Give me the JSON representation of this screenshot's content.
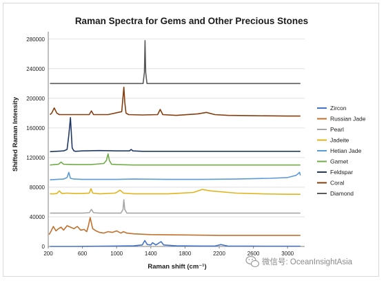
{
  "chart_data": {
    "type": "line",
    "title": "Raman Spectra for Gems and Other Precious Stones",
    "xlabel": "Raman shift (cm⁻¹)",
    "ylabel": "Shifted Raman Intensity",
    "xlim": [
      200,
      3200
    ],
    "ylim": [
      0,
      290000
    ],
    "xticks": [
      200,
      600,
      1000,
      1400,
      1800,
      2200,
      2600,
      3000
    ],
    "yticks": [
      0,
      40000,
      80000,
      120000,
      160000,
      200000,
      240000,
      280000
    ],
    "grid": "horizontal",
    "legend_position": "right",
    "series": [
      {
        "name": "Zircon",
        "color": "#4472c4",
        "x": [
          220,
          500,
          900,
          1200,
          1300,
          1330,
          1360,
          1400,
          1420,
          1460,
          1480,
          1520,
          1550,
          1700,
          2000,
          2150,
          2220,
          2300,
          2600,
          3000,
          3150
        ],
        "y": [
          0,
          0,
          400,
          800,
          2000,
          8000,
          2500,
          2000,
          5000,
          2000,
          3500,
          6500,
          2000,
          800,
          600,
          600,
          2500,
          600,
          400,
          300,
          300
        ]
      },
      {
        "name": "Russian Jade",
        "color": "#c0702c",
        "x": [
          210,
          230,
          260,
          290,
          320,
          350,
          380,
          420,
          460,
          500,
          540,
          580,
          620,
          650,
          670,
          690,
          720,
          760,
          800,
          850,
          900,
          950,
          1000,
          1050,
          1080,
          1120,
          1200,
          1400,
          1800,
          2200,
          2600,
          3000,
          3150
        ],
        "y": [
          16000,
          20000,
          27000,
          21000,
          24000,
          26000,
          22000,
          28000,
          26000,
          24000,
          27000,
          22000,
          23000,
          20000,
          28000,
          39000,
          24000,
          21000,
          19000,
          18000,
          20000,
          19000,
          21000,
          18000,
          20000,
          18000,
          17000,
          16000,
          15500,
          15000,
          15000,
          15000,
          15000
        ]
      },
      {
        "name": "Pearl",
        "color": "#a6a6a6",
        "x": [
          220,
          600,
          680,
          705,
          730,
          800,
          1050,
          1075,
          1085,
          1095,
          1120,
          1500,
          2000,
          2600,
          3150
        ],
        "y": [
          45000,
          45000,
          45500,
          50000,
          45500,
          45000,
          45000,
          50000,
          63000,
          50000,
          45000,
          45000,
          45000,
          45000,
          45000
        ]
      },
      {
        "name": "Jadeite",
        "color": "#e0b51c",
        "x": [
          220,
          270,
          300,
          330,
          360,
          420,
          500,
          600,
          680,
          700,
          720,
          800,
          980,
          1000,
          1040,
          1080,
          1200,
          1400,
          1600,
          1900,
          2000,
          2100,
          2400,
          2700,
          3000,
          3150
        ],
        "y": [
          71000,
          71000,
          71500,
          75000,
          71500,
          72000,
          71500,
          71500,
          72000,
          78000,
          72000,
          71000,
          72000,
          73000,
          76000,
          72000,
          71000,
          71000,
          71000,
          73000,
          77000,
          75000,
          72000,
          71000,
          70500,
          70500
        ]
      },
      {
        "name": "Hetian Jade",
        "color": "#5b9bd5",
        "x": [
          220,
          300,
          380,
          420,
          440,
          460,
          500,
          600,
          800,
          1000,
          1200,
          1600,
          2000,
          2400,
          2800,
          3000,
          3100,
          3140,
          3150
        ],
        "y": [
          90000,
          90500,
          91000,
          93000,
          100000,
          92000,
          91000,
          90500,
          90500,
          90500,
          91000,
          90500,
          90500,
          91000,
          92000,
          93000,
          96000,
          100000,
          96000
        ]
      },
      {
        "name": "Garnet",
        "color": "#70ad47",
        "x": [
          220,
          320,
          350,
          380,
          500,
          700,
          850,
          880,
          900,
          915,
          940,
          1000,
          1200,
          1600,
          2000,
          2400,
          2800,
          3150
        ],
        "y": [
          110000,
          111000,
          114000,
          111000,
          110500,
          110500,
          112000,
          116000,
          125000,
          116000,
          111000,
          110500,
          110000,
          110000,
          110000,
          110000,
          110000,
          110000
        ]
      },
      {
        "name": "Feldspar",
        "color": "#203864",
        "x": [
          220,
          380,
          420,
          440,
          460,
          480,
          500,
          520,
          600,
          800,
          1000,
          1150,
          1170,
          1190,
          1300,
          1600,
          2000,
          2400,
          2800,
          3150
        ],
        "y": [
          128000,
          129000,
          131000,
          150000,
          174000,
          133000,
          129000,
          128500,
          129000,
          129500,
          129000,
          129000,
          131000,
          129000,
          128500,
          128500,
          128500,
          128500,
          128500,
          128500
        ]
      },
      {
        "name": "Coral",
        "color": "#843c0c",
        "x": [
          220,
          240,
          270,
          300,
          330,
          500,
          680,
          705,
          730,
          900,
          1060,
          1085,
          1095,
          1110,
          1140,
          1300,
          1480,
          1510,
          1540,
          1700,
          1950,
          2050,
          2150,
          2300,
          2600,
          3000,
          3150
        ],
        "y": [
          178000,
          180000,
          187000,
          180000,
          178000,
          178000,
          178000,
          183000,
          178000,
          178000,
          182000,
          215000,
          195000,
          180000,
          178000,
          177500,
          178000,
          185000,
          178000,
          177000,
          179000,
          181000,
          178000,
          177000,
          176500,
          176000,
          176000
        ]
      },
      {
        "name": "Diamond",
        "color": "#595959",
        "x": [
          220,
          1000,
          1310,
          1325,
          1332,
          1340,
          1355,
          1600,
          2200,
          2800,
          3150
        ],
        "y": [
          220000,
          220000,
          220000,
          235000,
          278000,
          235000,
          220000,
          220000,
          220000,
          220000,
          220000
        ]
      }
    ]
  },
  "watermark": {
    "icon": "wechat-icon",
    "text": "微信号: OceanInsightAsia"
  }
}
